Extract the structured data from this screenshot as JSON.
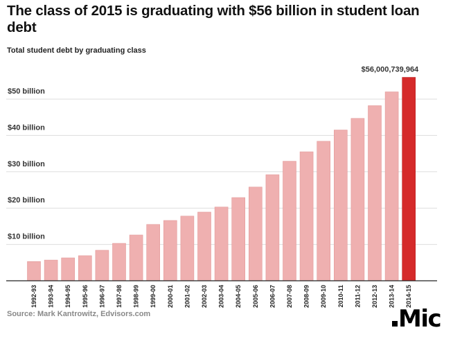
{
  "title": "The class of 2015 is graduating with $56 billion in student loan debt",
  "subtitle": "Total student debt by graduating class",
  "source": "Source: Mark Kantrowitz, Edvisors.com",
  "logo": "Mic",
  "chart_data": {
    "type": "bar",
    "title": "The class of 2015 is graduating with $56 billion in student loan debt",
    "subtitle": "Total student debt by graduating class",
    "xlabel": "",
    "ylabel": "",
    "ylim": [
      0,
      56
    ],
    "grid": true,
    "yticks": [
      10,
      20,
      30,
      40,
      50
    ],
    "ytick_labels": [
      "$10 billion",
      "$20 billion",
      "$30 billion",
      "$40 billion",
      "$50 billion"
    ],
    "categories": [
      "1992-93",
      "1993-94",
      "1994-95",
      "1995-96",
      "1996-97",
      "1997-98",
      "1998-99",
      "1999-00",
      "2000-01",
      "2001-02",
      "2002-03",
      "2003-04",
      "2004-05",
      "2005-06",
      "2006-07",
      "2007-08",
      "2008-09",
      "2009-10",
      "2010-11",
      "2011-12",
      "2012-13",
      "2013-14",
      "2014-15"
    ],
    "values": [
      5.3,
      5.7,
      6.3,
      6.9,
      8.4,
      10.3,
      12.6,
      15.5,
      16.6,
      17.8,
      18.9,
      20.3,
      22.9,
      25.8,
      29.2,
      32.9,
      35.5,
      38.4,
      41.5,
      44.7,
      48.2,
      52.0,
      56.0
    ],
    "units": "billion $",
    "annotation": {
      "category": "2014-15",
      "text": "$56,000,739,964"
    },
    "colors": {
      "bar": "#efb0b0",
      "highlight": "#d52a2a",
      "grid": "#dddddd",
      "axis": "#222222"
    }
  }
}
